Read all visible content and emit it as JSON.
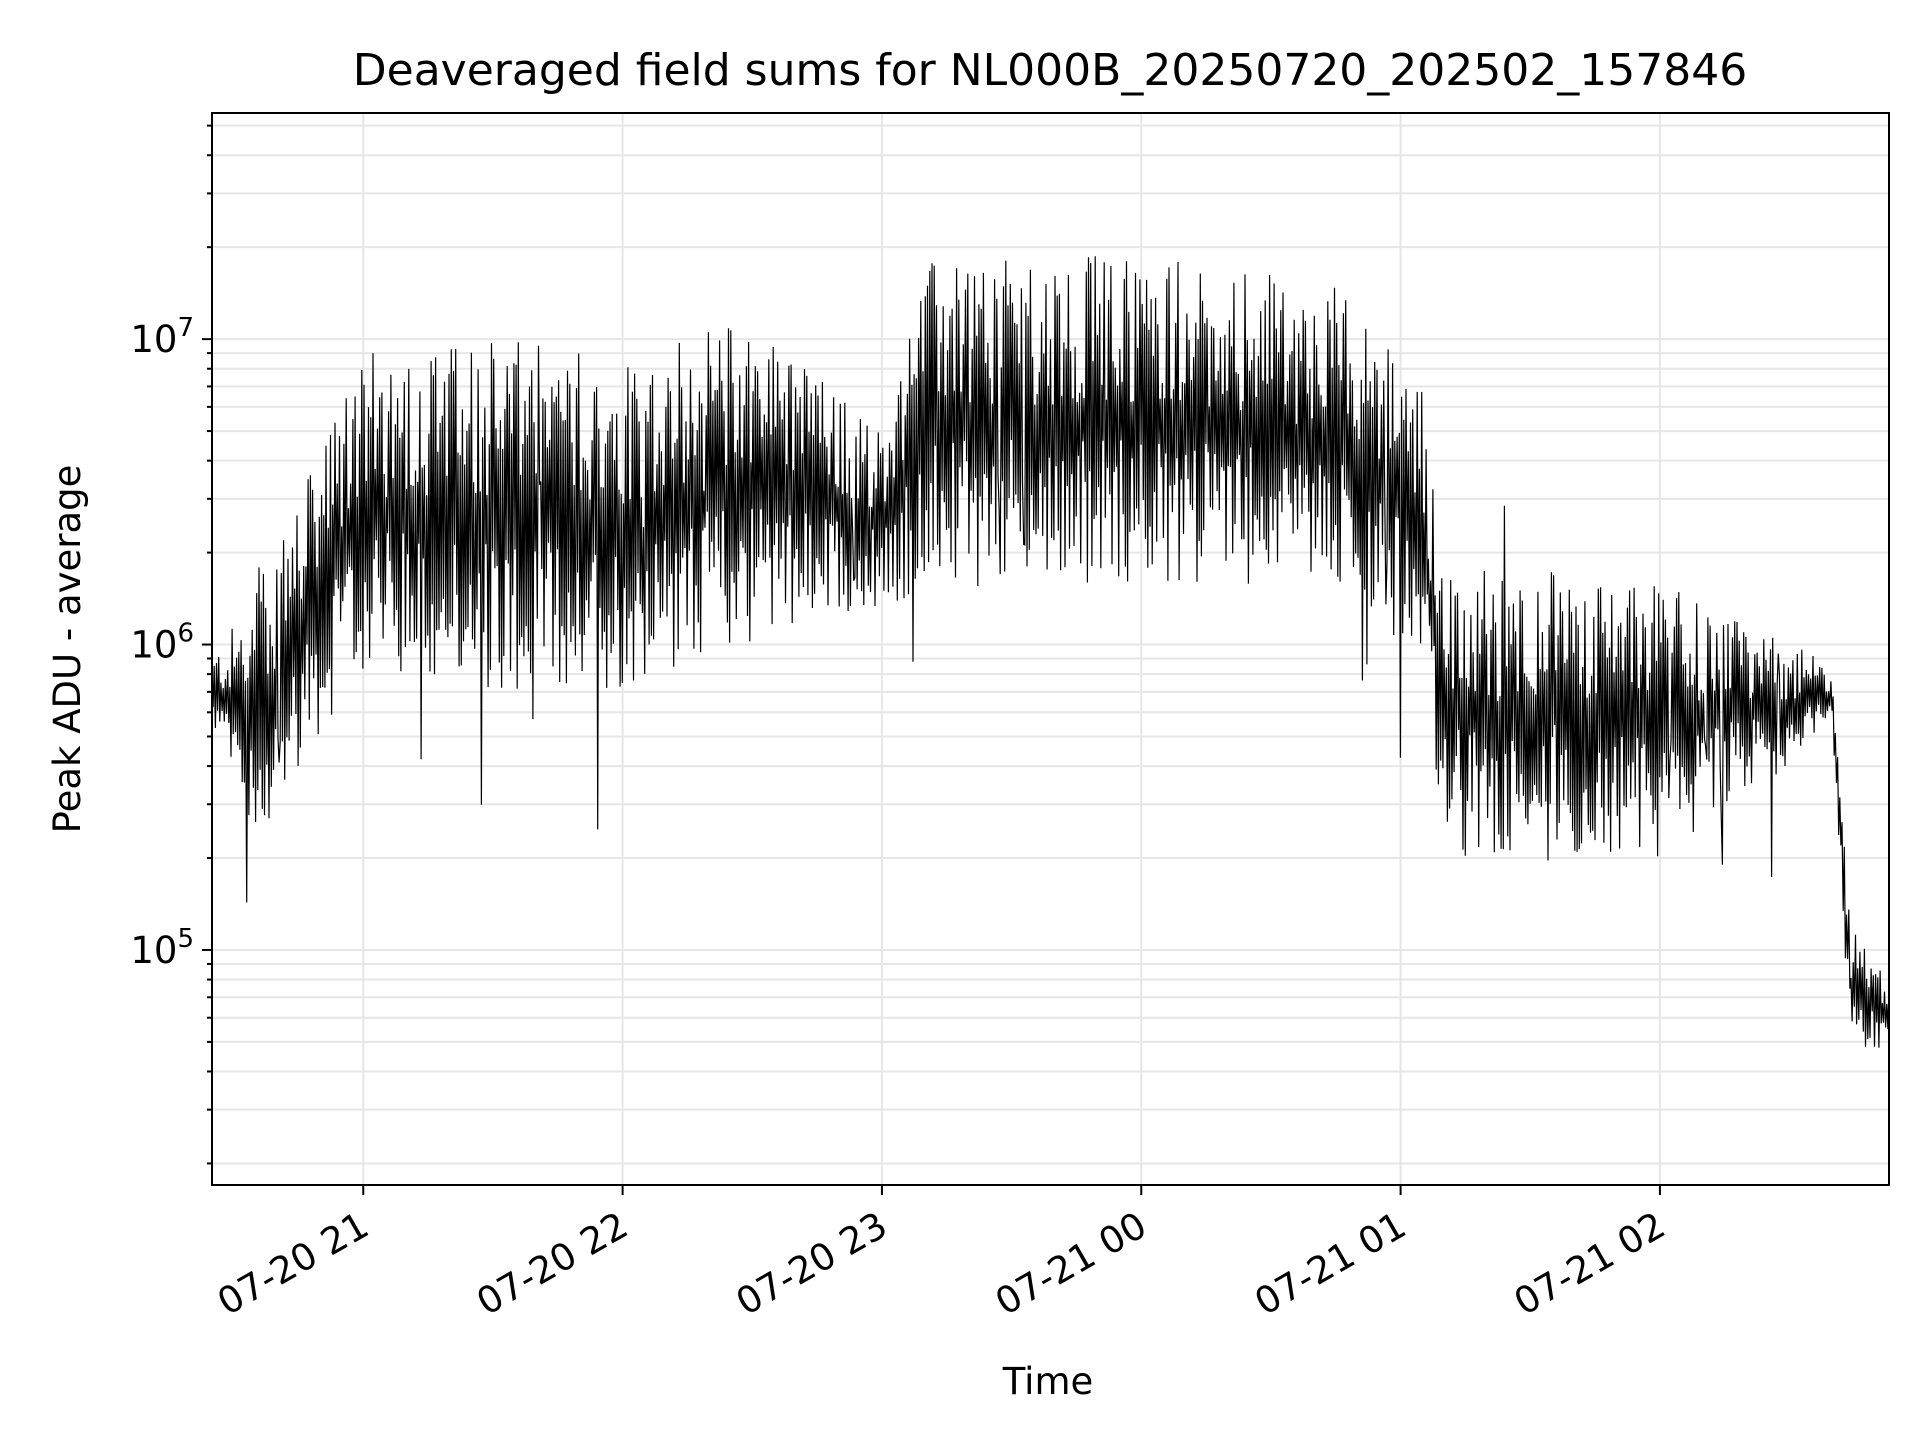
{
  "chart_data": {
    "type": "line",
    "title": "Deaveraged field sums for NL000B_20250720_202502_157846",
    "xlabel": "Time",
    "ylabel": "Peak ADU - average",
    "yscale": "log",
    "ylim": [
      17000,
      55000000
    ],
    "xlim": [
      "2025-07-20 20:25",
      "2025-07-21 02:53"
    ],
    "x_ticks": [
      "07-20 21",
      "07-20 22",
      "07-20 23",
      "07-21 00",
      "07-21 01",
      "07-21 02"
    ],
    "y_ticks": [
      {
        "base": "10",
        "exp": "5",
        "value": 100000
      },
      {
        "base": "10",
        "exp": "6",
        "value": 1000000
      },
      {
        "base": "10",
        "exp": "7",
        "value": 10000000
      }
    ],
    "grid": true,
    "line_color": "#000000",
    "grid_color": "#e6e6e6",
    "series_anchors": {
      "description_only_in_script": false,
      "times": [
        "2025-07-20 20:25",
        "2025-07-20 20:35",
        "2025-07-20 20:45",
        "2025-07-20 21:00",
        "2025-07-20 21:30",
        "2025-07-20 22:00",
        "2025-07-20 22:30",
        "2025-07-20 23:00",
        "2025-07-20 23:10",
        "2025-07-21 00:00",
        "2025-07-21 00:45",
        "2025-07-21 01:05",
        "2025-07-21 01:10",
        "2025-07-21 01:30",
        "2025-07-21 02:00",
        "2025-07-21 02:30",
        "2025-07-21 02:40",
        "2025-07-21 02:44",
        "2025-07-21 02:53"
      ],
      "low": [
        550000,
        200000,
        400000,
        800000,
        700000,
        700000,
        1000000,
        1300000,
        1500000,
        1600000,
        1500000,
        900000,
        200000,
        180000,
        200000,
        400000,
        500000,
        50000,
        45000
      ],
      "high": [
        900000,
        1500000,
        3000000,
        9000000,
        10000000,
        9000000,
        12000000,
        5000000,
        18000000,
        19000000,
        15000000,
        7000000,
        1800000,
        1800000,
        1600000,
        1000000,
        900000,
        120000,
        80000
      ]
    }
  }
}
